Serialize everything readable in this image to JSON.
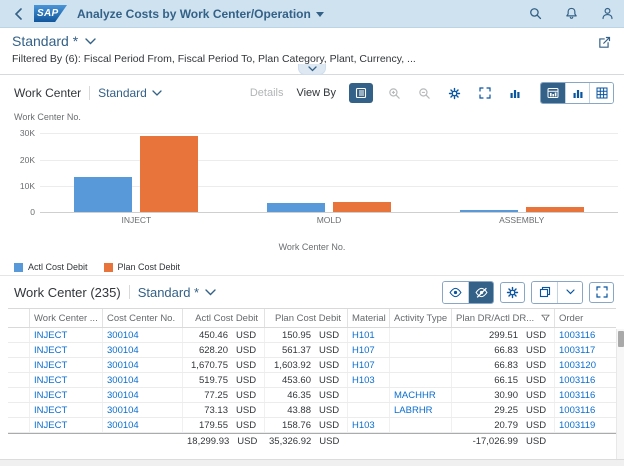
{
  "colors": {
    "shell_bg": "#cfe2f0",
    "brand_blue": "#346187",
    "interactive_blue": "#0854a0",
    "link_blue": "#0a6ed1",
    "series_actual": "#5899DA",
    "series_plan": "#E8743B",
    "text_dark": "#32363a",
    "text_gray": "#6a6d70"
  },
  "shell": {
    "logo_text": "SAP",
    "title": "Analyze Costs by Work Center/Operation",
    "icons": [
      "back",
      "search",
      "notifications",
      "user"
    ]
  },
  "variant_bar": {
    "title": "Standard *",
    "filtered_by": "Filtered By (6): Fiscal Period From, Fiscal Period To, Plan Category, Plant, Currency, ...",
    "share_icon": "share",
    "collapse_icon": "chevron-down"
  },
  "chart_section": {
    "title": "Work Center",
    "variant": "Standard",
    "details_label": "Details",
    "view_by_label": "View By",
    "dimension_label": "Work Center No.",
    "toolbar_icons": [
      "legend-toggle",
      "zoom-in",
      "zoom-out",
      "settings",
      "fullscreen",
      "chart-type"
    ],
    "view_switch_icons": [
      "chart-table-view",
      "chart-view",
      "table-view"
    ],
    "selected_view": "chart-table-view"
  },
  "chart_data": {
    "type": "bar",
    "categories": [
      "INJECT",
      "MOLD",
      "ASSEMBLY"
    ],
    "series": [
      {
        "name": "Actl Cost Debit",
        "color": "#5899DA",
        "values": [
          13200,
          3400,
          600
        ]
      },
      {
        "name": "Plan Cost Debit",
        "color": "#E8743B",
        "values": [
          28900,
          4000,
          1900
        ]
      }
    ],
    "title": "Work Center",
    "xlabel": "Work Center No.",
    "ylabel": "",
    "ylim": [
      0,
      32000
    ],
    "yticks": [
      {
        "value": 0,
        "label": "0"
      },
      {
        "value": 10000,
        "label": "10K"
      },
      {
        "value": 20000,
        "label": "20K"
      },
      {
        "value": 30000,
        "label": "30K"
      }
    ],
    "grid": true,
    "legend_position": "bottom-left"
  },
  "table_section": {
    "title": "Work Center (235)",
    "variant": "Standard *",
    "toolbar_icons": [
      "show-details",
      "hide-details",
      "settings",
      "copy",
      "copy-menu",
      "fullscreen"
    ],
    "selected_toggle": "hide-details",
    "columns": [
      "",
      "Work Center ...",
      "Cost Center No.",
      "Actl Cost Debit",
      "Plan Cost Debit",
      "Material",
      "Activity Type",
      "Plan DR/Actl DR...",
      "Order"
    ],
    "rows": [
      {
        "work_center": "INJECT",
        "cost_center": "300104",
        "actl": "450.46",
        "actl_cur": "USD",
        "plan": "150.95",
        "plan_cur": "USD",
        "material": "H101",
        "activity": "",
        "plan_dr": "299.51",
        "plan_dr_cur": "USD",
        "order": "1003116"
      },
      {
        "work_center": "INJECT",
        "cost_center": "300104",
        "actl": "628.20",
        "actl_cur": "USD",
        "plan": "561.37",
        "plan_cur": "USD",
        "material": "H107",
        "activity": "",
        "plan_dr": "66.83",
        "plan_dr_cur": "USD",
        "order": "1003117"
      },
      {
        "work_center": "INJECT",
        "cost_center": "300104",
        "actl": "1,670.75",
        "actl_cur": "USD",
        "plan": "1,603.92",
        "plan_cur": "USD",
        "material": "H107",
        "activity": "",
        "plan_dr": "66.83",
        "plan_dr_cur": "USD",
        "order": "1003120"
      },
      {
        "work_center": "INJECT",
        "cost_center": "300104",
        "actl": "519.75",
        "actl_cur": "USD",
        "plan": "453.60",
        "plan_cur": "USD",
        "material": "H103",
        "activity": "",
        "plan_dr": "66.15",
        "plan_dr_cur": "USD",
        "order": "1003116"
      },
      {
        "work_center": "INJECT",
        "cost_center": "300104",
        "actl": "77.25",
        "actl_cur": "USD",
        "plan": "46.35",
        "plan_cur": "USD",
        "material": "",
        "activity": "MACHHR",
        "plan_dr": "30.90",
        "plan_dr_cur": "USD",
        "order": "1003116"
      },
      {
        "work_center": "INJECT",
        "cost_center": "300104",
        "actl": "73.13",
        "actl_cur": "USD",
        "plan": "43.88",
        "plan_cur": "USD",
        "material": "",
        "activity": "LABRHR",
        "plan_dr": "29.25",
        "plan_dr_cur": "USD",
        "order": "1003116"
      },
      {
        "work_center": "INJECT",
        "cost_center": "300104",
        "actl": "179.55",
        "actl_cur": "USD",
        "plan": "158.76",
        "plan_cur": "USD",
        "material": "H103",
        "activity": "",
        "plan_dr": "20.79",
        "plan_dr_cur": "USD",
        "order": "1003119"
      }
    ],
    "totals": {
      "actl": "18,299.93",
      "actl_cur": "USD",
      "plan": "35,326.92",
      "plan_cur": "USD",
      "plan_dr": "-17,026.99",
      "plan_dr_cur": "USD"
    }
  }
}
